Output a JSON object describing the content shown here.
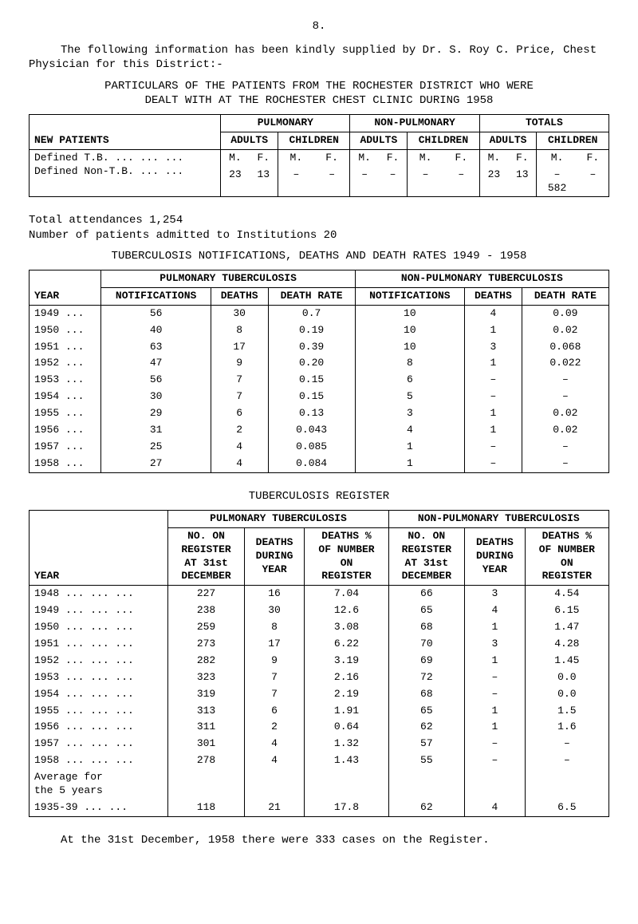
{
  "page_number": "8.",
  "intro": "The following information has been kindly supplied by Dr. S. Roy C. Price, Chest Physician for this District:-",
  "heading1a": "PARTICULARS OF THE PATIENTS FROM THE ROCHESTER DISTRICT WHO WERE",
  "heading1b": "DEALT WITH AT THE ROCHESTER CHEST CLINIC DURING 1958",
  "table1": {
    "groups": [
      "PULMONARY",
      "NON-PULMONARY",
      "TOTALS"
    ],
    "sub": [
      "ADULTS",
      "CHILDREN"
    ],
    "mf": [
      "M.",
      "F."
    ],
    "row_label_hdr": "NEW PATIENTS",
    "rows": [
      {
        "label": "Defined T.B.  ...  ...  ...",
        "cells": [
          "23",
          "13",
          "–",
          "–",
          "–",
          "–",
          "–",
          "–",
          "23",
          "13",
          "–",
          "–"
        ]
      },
      {
        "label": "Defined Non-T.B.  ...  ...",
        "cells": [
          "",
          "",
          "",
          "",
          "",
          "",
          "",
          "",
          "",
          "",
          "582",
          ""
        ]
      }
    ]
  },
  "below1a": "Total attendances 1,254",
  "below1b": "Number of patients admitted to Institutions 20",
  "heading2": "TUBERCULOSIS NOTIFICATIONS, DEATHS AND DEATH RATES 1949 - 1958",
  "table2": {
    "group_pul": "PULMONARY TUBERCULOSIS",
    "group_non": "NON-PULMONARY TUBERCULOSIS",
    "year_hdr": "YEAR",
    "cols": [
      "NOTIFICATIONS",
      "DEATHS",
      "DEATH RATE",
      "NOTIFICATIONS",
      "DEATHS",
      "DEATH RATE"
    ],
    "rows": [
      [
        "1949 ...",
        "56",
        "30",
        "0.7",
        "10",
        "4",
        "0.09"
      ],
      [
        "1950 ...",
        "40",
        "8",
        "0.19",
        "10",
        "1",
        "0.02"
      ],
      [
        "1951 ...",
        "63",
        "17",
        "0.39",
        "10",
        "3",
        "0.068"
      ],
      [
        "1952 ...",
        "47",
        "9",
        "0.20",
        "8",
        "1",
        "0.022"
      ],
      [
        "1953 ...",
        "56",
        "7",
        "0.15",
        "6",
        "–",
        "–"
      ],
      [
        "1954 ...",
        "30",
        "7",
        "0.15",
        "5",
        "–",
        "–"
      ],
      [
        "1955 ...",
        "29",
        "6",
        "0.13",
        "3",
        "1",
        "0.02"
      ],
      [
        "1956 ...",
        "31",
        "2",
        "0.043",
        "4",
        "1",
        "0.02"
      ],
      [
        "1957 ...",
        "25",
        "4",
        "0.085",
        "1",
        "–",
        "–"
      ],
      [
        "1958 ...",
        "27",
        "4",
        "0.084",
        "1",
        "–",
        "–"
      ]
    ]
  },
  "heading3": "TUBERCULOSIS REGISTER",
  "table3": {
    "group_pul": "PULMONARY TUBERCULOSIS",
    "group_non": "NON-PULMONARY TUBERCULOSIS",
    "year_hdr": "YEAR",
    "hdr_no_on": "NO. ON",
    "hdr_reg": "REGISTER",
    "hdr_at": "AT 31st",
    "hdr_dec": "DECEMBER",
    "hdr_deaths": "DEATHS",
    "hdr_during": "DURING",
    "hdr_year": "YEAR",
    "hdr_dpct": "DEATHS %",
    "hdr_ofnum": "OF NUMBER",
    "hdr_on": "ON",
    "hdr_register": "REGISTER",
    "rows": [
      [
        "1948 ...  ...  ...",
        "227",
        "16",
        "7.04",
        "66",
        "3",
        "4.54"
      ],
      [
        "1949 ...  ...  ...",
        "238",
        "30",
        "12.6",
        "65",
        "4",
        "6.15"
      ],
      [
        "1950 ...  ...  ...",
        "259",
        "8",
        "3.08",
        "68",
        "1",
        "1.47"
      ],
      [
        "1951 ...  ...  ...",
        "273",
        "17",
        "6.22",
        "70",
        "3",
        "4.28"
      ],
      [
        "1952 ...  ...  ...",
        "282",
        "9",
        "3.19",
        "69",
        "1",
        "1.45"
      ],
      [
        "1953 ...  ...  ...",
        "323",
        "7",
        "2.16",
        "72",
        "–",
        "0.0"
      ],
      [
        "1954 ...  ...  ...",
        "319",
        "7",
        "2.19",
        "68",
        "–",
        "0.0"
      ],
      [
        "1955 ...  ...  ...",
        "313",
        "6",
        "1.91",
        "65",
        "1",
        "1.5"
      ],
      [
        "1956 ...  ...  ...",
        "311",
        "2",
        "0.64",
        "62",
        "1",
        "1.6"
      ],
      [
        "1957 ...  ...  ...",
        "301",
        "4",
        "1.32",
        "57",
        "–",
        "–"
      ],
      [
        "1958 ...  ...  ...",
        "278",
        "4",
        "1.43",
        "55",
        "–",
        "–"
      ]
    ],
    "avg_label1": "Average for",
    "avg_label2": "the 5 years",
    "avg_row": [
      "1935-39   ...  ...",
      "118",
      "21",
      "17.8",
      "62",
      "4",
      "6.5"
    ]
  },
  "footer": "At the 31st December, 1958 there were 333 cases on the Register."
}
